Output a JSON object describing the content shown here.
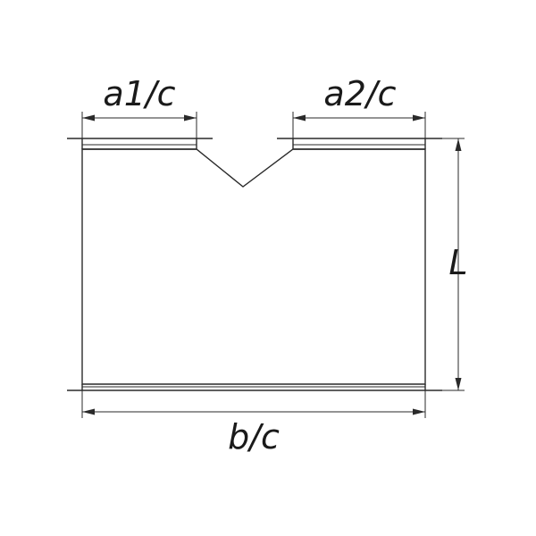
{
  "diagram": {
    "labels": {
      "a1": "a1/c",
      "a2": "a2/c",
      "length": "L",
      "base": "b/c"
    },
    "stroke_color": "#2a2a2a",
    "background": "#ffffff"
  }
}
